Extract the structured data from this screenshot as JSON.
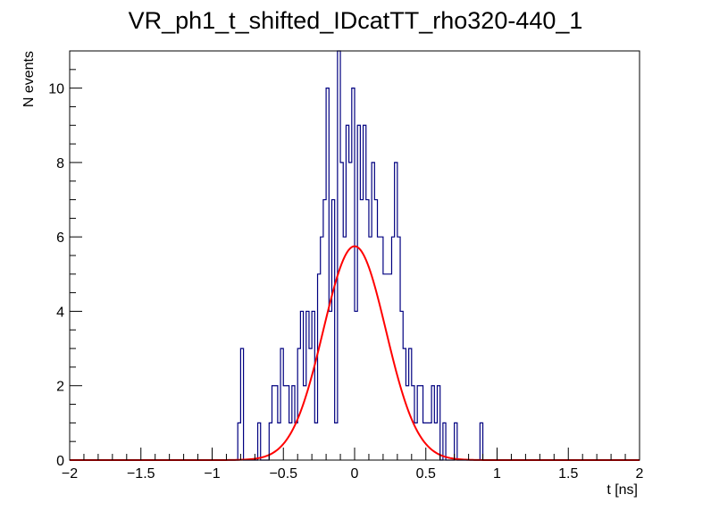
{
  "chart_data": {
    "type": "histogram",
    "title": "VR_ph1_t_shifted_IDcatTT_rho320-440_1",
    "xlabel": "t [ns]",
    "ylabel": "N events",
    "xlim": [
      -2,
      2
    ],
    "ylim": [
      0,
      11
    ],
    "grid": false,
    "x_ticks": [
      "−2",
      "−1.5",
      "−1",
      "−0.5",
      "0",
      "0.5",
      "1",
      "1.5",
      "2"
    ],
    "y_ticks": [
      "0",
      "2",
      "4",
      "6",
      "8",
      "10"
    ],
    "histogram": {
      "name": "",
      "color": "#000080",
      "bin_width": 0.02,
      "bins": [
        [
          -0.82,
          1
        ],
        [
          -0.8,
          3
        ],
        [
          -0.68,
          1
        ],
        [
          -0.6,
          1
        ],
        [
          -0.58,
          2
        ],
        [
          -0.56,
          2
        ],
        [
          -0.54,
          1
        ],
        [
          -0.52,
          3
        ],
        [
          -0.5,
          2
        ],
        [
          -0.48,
          2
        ],
        [
          -0.46,
          1
        ],
        [
          -0.44,
          2
        ],
        [
          -0.42,
          1
        ],
        [
          -0.4,
          3
        ],
        [
          -0.38,
          4
        ],
        [
          -0.36,
          2
        ],
        [
          -0.34,
          4
        ],
        [
          -0.32,
          3
        ],
        [
          -0.3,
          4
        ],
        [
          -0.28,
          1
        ],
        [
          -0.26,
          5
        ],
        [
          -0.24,
          6
        ],
        [
          -0.22,
          7
        ],
        [
          -0.2,
          10
        ],
        [
          -0.18,
          4
        ],
        [
          -0.16,
          7
        ],
        [
          -0.14,
          1
        ],
        [
          -0.12,
          11
        ],
        [
          -0.1,
          8
        ],
        [
          -0.08,
          6
        ],
        [
          -0.06,
          9
        ],
        [
          -0.04,
          8
        ],
        [
          -0.02,
          10
        ],
        [
          0.0,
          4
        ],
        [
          0.02,
          9
        ],
        [
          0.04,
          7
        ],
        [
          0.06,
          9
        ],
        [
          0.08,
          7
        ],
        [
          0.1,
          6
        ],
        [
          0.12,
          8
        ],
        [
          0.14,
          7
        ],
        [
          0.16,
          6
        ],
        [
          0.18,
          6
        ],
        [
          0.2,
          5
        ],
        [
          0.22,
          5
        ],
        [
          0.24,
          5
        ],
        [
          0.26,
          6
        ],
        [
          0.28,
          8
        ],
        [
          0.3,
          6
        ],
        [
          0.32,
          4
        ],
        [
          0.34,
          3
        ],
        [
          0.36,
          2
        ],
        [
          0.38,
          3
        ],
        [
          0.4,
          2
        ],
        [
          0.42,
          1
        ],
        [
          0.44,
          2
        ],
        [
          0.46,
          2
        ],
        [
          0.48,
          1
        ],
        [
          0.5,
          1
        ],
        [
          0.52,
          1
        ],
        [
          0.54,
          2
        ],
        [
          0.56,
          1
        ],
        [
          0.58,
          2
        ],
        [
          0.62,
          1
        ],
        [
          0.7,
          1
        ],
        [
          0.88,
          1
        ]
      ]
    },
    "fit": {
      "name": "",
      "type": "gaussian",
      "color": "#ff0000",
      "amplitude": 5.75,
      "mean": 0.0,
      "sigma": 0.22
    }
  }
}
